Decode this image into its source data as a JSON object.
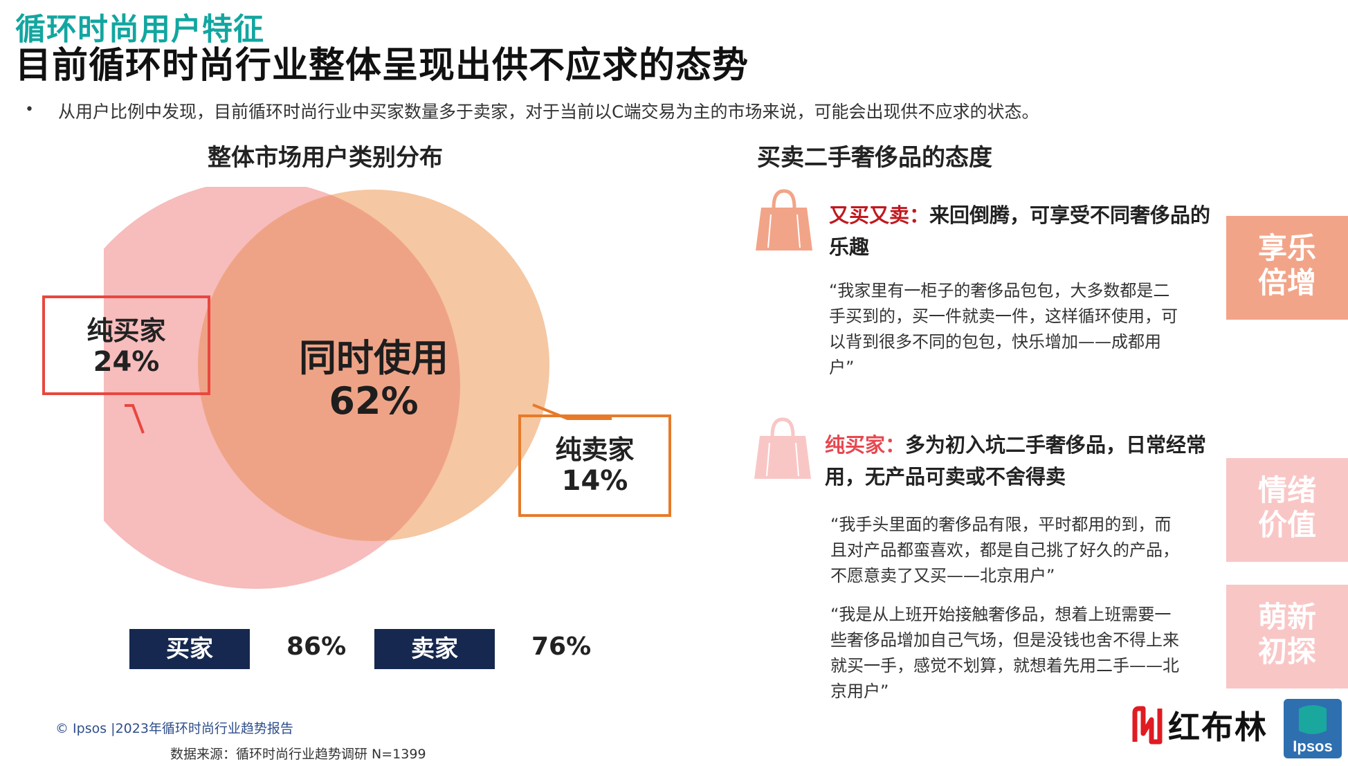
{
  "header": {
    "section_title": "循环时尚用户特征",
    "headline": "目前循环时尚行业整体呈现出供不应求的态势",
    "bullet_mark": "•",
    "bullet_text": "从用户比例中发现，目前循环时尚行业中买家数量多于卖家，对于当前以C端交易为主的市场来说，可能会出现供不应求的状态。"
  },
  "left": {
    "title": "整体市场用户类别分布",
    "venn": {
      "buyer_only": {
        "label": "纯买家",
        "value": "24%"
      },
      "both": {
        "label": "同时使用",
        "value": "62%"
      },
      "seller_only": {
        "label": "纯卖家",
        "value": "14%"
      }
    },
    "totals": [
      {
        "label": "买家",
        "value": "86%"
      },
      {
        "label": "卖家",
        "value": "76%"
      }
    ],
    "colors": {
      "buyer_circle": "#f7bcbc",
      "seller_circle": "#f5c7a2",
      "overlap": "#efa386",
      "buyer_box": "#e8473f",
      "seller_box": "#e77a2a",
      "pill": "#16284f"
    }
  },
  "right": {
    "title": "买卖二手奢侈品的态度",
    "points": [
      {
        "key": "又买又卖：",
        "text": "来回倒腾，可享受不同奢侈品的乐趣",
        "quotes": [
          "“我家里有一柜子的奢侈品包包，大多数都是二手买到的，买一件就卖一件，这样循环使用，可以背到很多不同的包包，快乐增加——成都用户”"
        ],
        "icon": "handbag-icon",
        "icon_color": "#f2a488"
      },
      {
        "key": "纯买家：",
        "text": "多为初入坑二手奢侈品，日常经常用，无产品可卖或不舍得卖",
        "quotes": [
          "“我手头里面的奢侈品有限，平时都用的到，而且对产品都蛮喜欢，都是自己挑了好久的产品，不愿意卖了又买——北京用户”",
          "“我是从上班开始接触奢侈品，想着上班需要一些奢侈品增加自己气场，但是没钱也舍不得上来就买一手，感觉不划算，就想着先用二手——北京用户”"
        ],
        "icon": "handbag-icon",
        "icon_color": "#f9c6c6"
      }
    ],
    "tags": [
      {
        "line1": "享乐",
        "line2": "倍增",
        "color": "#f2a488"
      },
      {
        "line1": "情绪",
        "line2": "价值",
        "color": "#f9c6c6"
      },
      {
        "line1": "萌新",
        "line2": "初探",
        "color": "#f9c6c6"
      }
    ]
  },
  "footer": {
    "copyright": "© Ipsos |2023年循环时尚行业趋势报告",
    "source": "数据来源：循环时尚行业趋势调研 N=1399",
    "brand_name": "红布林",
    "ipsos_logo": "Ipsos"
  }
}
